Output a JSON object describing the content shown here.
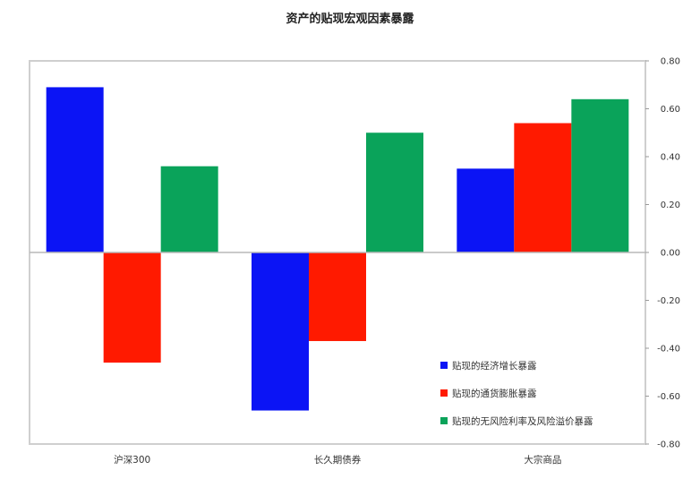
{
  "chart_data": {
    "type": "bar",
    "title": "资产的贴现宏观因素暴露",
    "categories": [
      "沪深300",
      "长久期债券",
      "大宗商品"
    ],
    "series": [
      {
        "name": "贴现的经济增长暴露",
        "color": "#0b14f5",
        "values": [
          0.69,
          -0.66,
          0.35
        ]
      },
      {
        "name": "贴现的通货膨胀暴露",
        "color": "#ff1a00",
        "values": [
          -0.46,
          -0.37,
          0.54
        ]
      },
      {
        "name": "贴现的无风险利率及风险溢价暴露",
        "color": "#0aa35a",
        "values": [
          0.36,
          0.5,
          0.64
        ]
      }
    ],
    "ylim": [
      -0.8,
      0.8
    ],
    "yticks": [
      "0.80",
      "0.60",
      "0.40",
      "0.20",
      "0.00",
      "-0.20",
      "-0.40",
      "-0.60",
      "-0.80"
    ],
    "grid": false,
    "legend_position": "bottom-right"
  }
}
